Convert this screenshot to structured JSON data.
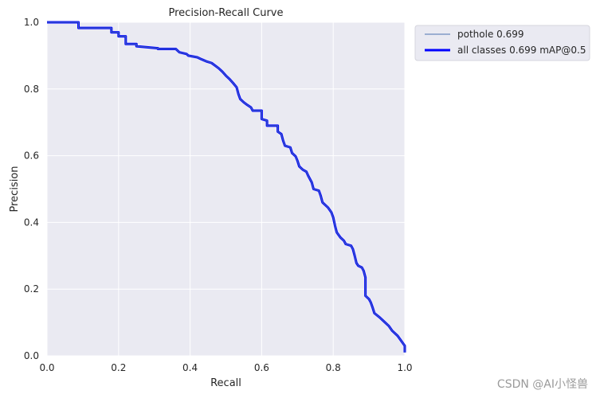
{
  "chart_data": {
    "type": "line",
    "title": "Precision-Recall Curve",
    "xlabel": "Recall",
    "ylabel": "Precision",
    "xlim": [
      0,
      1
    ],
    "ylim": [
      0,
      1
    ],
    "grid": true,
    "legend_position": "outside-upper-right",
    "xticks": [
      "0.0",
      "0.2",
      "0.4",
      "0.6",
      "0.8",
      "1.0"
    ],
    "yticks": [
      "0.0",
      "0.2",
      "0.4",
      "0.6",
      "0.8",
      "1.0"
    ],
    "series": [
      {
        "name": "pothole 0.699",
        "color": "#4c72b0",
        "style": "thin",
        "points": [
          [
            0.0,
            1.0
          ],
          [
            0.088,
            1.0
          ],
          [
            0.088,
            0.983
          ],
          [
            0.18,
            0.983
          ],
          [
            0.18,
            0.97
          ],
          [
            0.2,
            0.97
          ],
          [
            0.2,
            0.958
          ],
          [
            0.22,
            0.958
          ],
          [
            0.22,
            0.935
          ],
          [
            0.25,
            0.935
          ],
          [
            0.25,
            0.928
          ],
          [
            0.28,
            0.925
          ],
          [
            0.31,
            0.922
          ],
          [
            0.31,
            0.92
          ],
          [
            0.36,
            0.92
          ],
          [
            0.37,
            0.91
          ],
          [
            0.39,
            0.905
          ],
          [
            0.395,
            0.9
          ],
          [
            0.42,
            0.895
          ],
          [
            0.43,
            0.89
          ],
          [
            0.445,
            0.883
          ],
          [
            0.46,
            0.878
          ],
          [
            0.47,
            0.87
          ],
          [
            0.48,
            0.862
          ],
          [
            0.49,
            0.852
          ],
          [
            0.5,
            0.84
          ],
          [
            0.51,
            0.83
          ],
          [
            0.52,
            0.818
          ],
          [
            0.53,
            0.805
          ],
          [
            0.535,
            0.785
          ],
          [
            0.54,
            0.77
          ],
          [
            0.55,
            0.76
          ],
          [
            0.56,
            0.752
          ],
          [
            0.57,
            0.745
          ],
          [
            0.575,
            0.735
          ],
          [
            0.6,
            0.735
          ],
          [
            0.6,
            0.71
          ],
          [
            0.615,
            0.705
          ],
          [
            0.615,
            0.69
          ],
          [
            0.645,
            0.69
          ],
          [
            0.645,
            0.672
          ],
          [
            0.655,
            0.665
          ],
          [
            0.66,
            0.645
          ],
          [
            0.665,
            0.63
          ],
          [
            0.68,
            0.625
          ],
          [
            0.685,
            0.608
          ],
          [
            0.695,
            0.598
          ],
          [
            0.7,
            0.585
          ],
          [
            0.705,
            0.568
          ],
          [
            0.715,
            0.558
          ],
          [
            0.725,
            0.552
          ],
          [
            0.73,
            0.54
          ],
          [
            0.74,
            0.52
          ],
          [
            0.745,
            0.5
          ],
          [
            0.76,
            0.495
          ],
          [
            0.765,
            0.48
          ],
          [
            0.77,
            0.46
          ],
          [
            0.785,
            0.445
          ],
          [
            0.795,
            0.43
          ],
          [
            0.8,
            0.415
          ],
          [
            0.805,
            0.39
          ],
          [
            0.81,
            0.37
          ],
          [
            0.82,
            0.355
          ],
          [
            0.83,
            0.345
          ],
          [
            0.835,
            0.335
          ],
          [
            0.85,
            0.33
          ],
          [
            0.855,
            0.32
          ],
          [
            0.86,
            0.3
          ],
          [
            0.865,
            0.278
          ],
          [
            0.87,
            0.27
          ],
          [
            0.88,
            0.265
          ],
          [
            0.885,
            0.255
          ],
          [
            0.89,
            0.235
          ],
          [
            0.89,
            0.18
          ],
          [
            0.9,
            0.17
          ],
          [
            0.905,
            0.16
          ],
          [
            0.91,
            0.145
          ],
          [
            0.915,
            0.128
          ],
          [
            0.93,
            0.115
          ],
          [
            0.945,
            0.1
          ],
          [
            0.955,
            0.09
          ],
          [
            0.965,
            0.075
          ],
          [
            0.98,
            0.06
          ],
          [
            0.99,
            0.045
          ],
          [
            1.0,
            0.03
          ],
          [
            1.0,
            0.01
          ]
        ]
      },
      {
        "name": "all classes 0.699 mAP@0.5",
        "color": "#0000ff",
        "style": "thick",
        "points": "same-as-pothole"
      }
    ]
  },
  "watermark": "CSDN @AI小怪兽"
}
